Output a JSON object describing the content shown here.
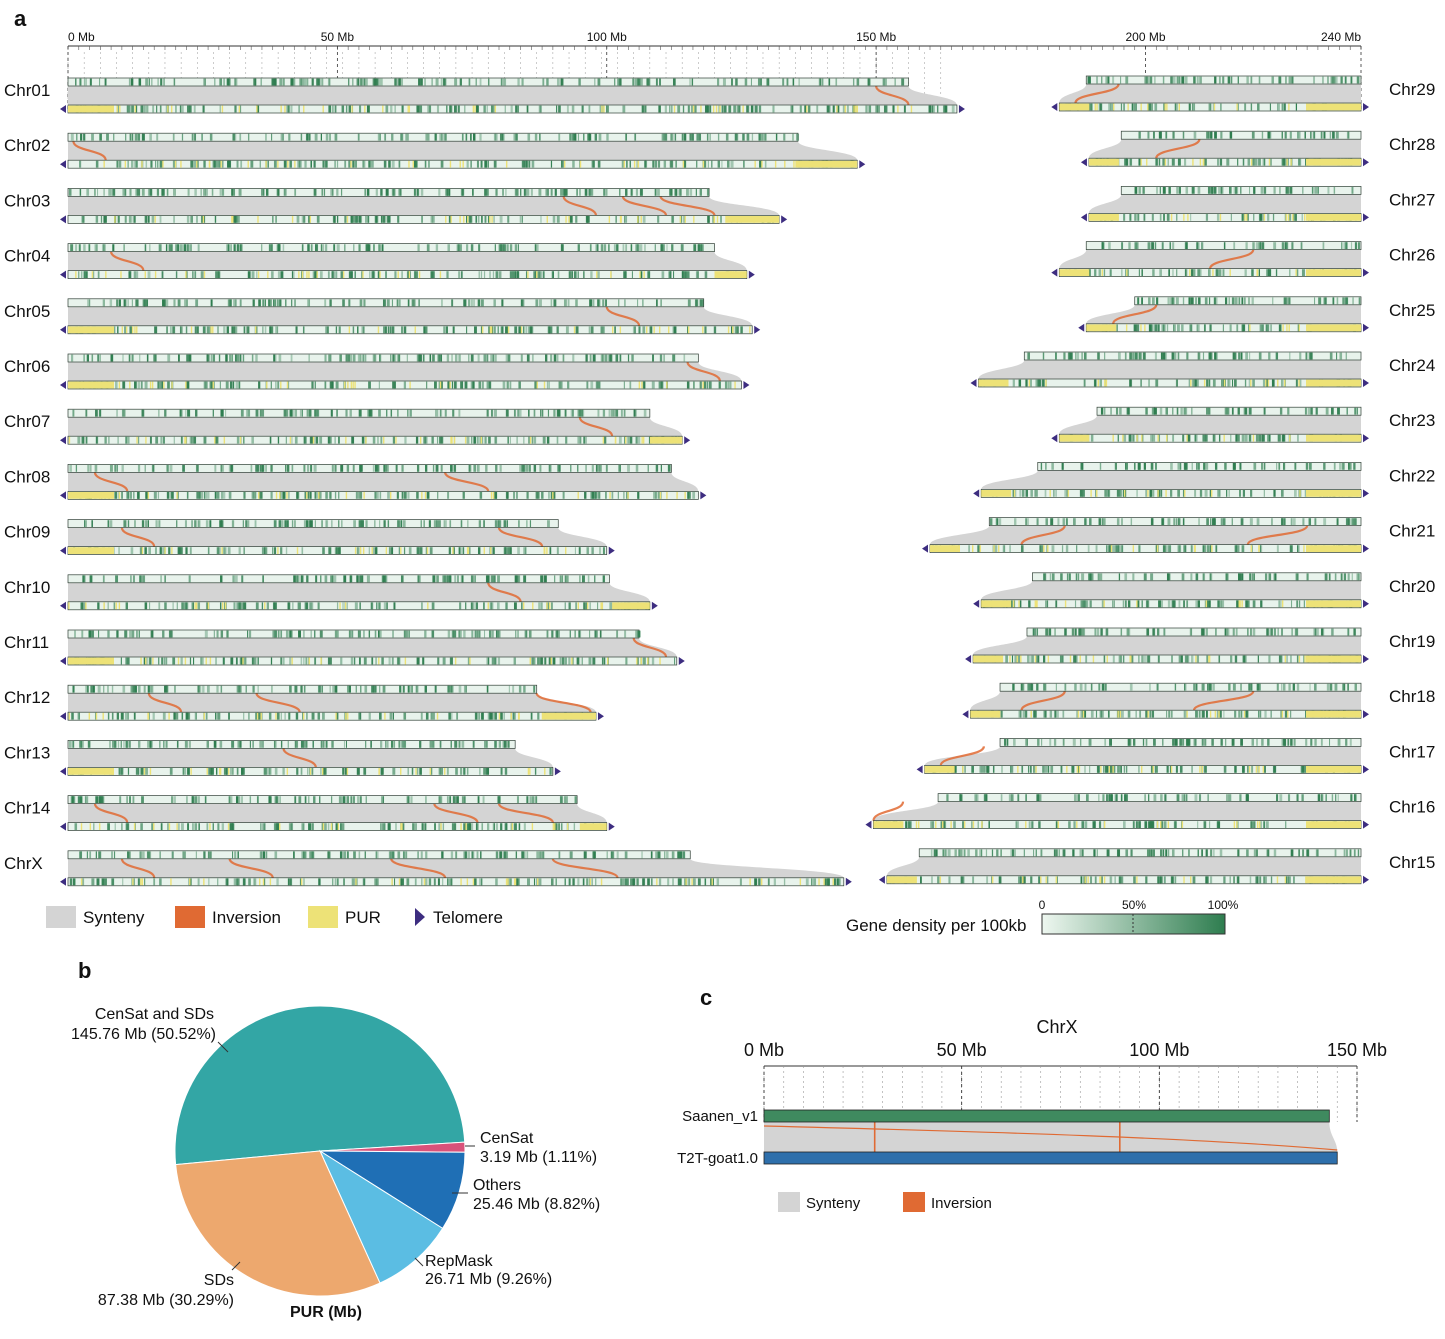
{
  "panel_labels": {
    "a": "a",
    "b": "b",
    "c": "c"
  },
  "colors": {
    "synteny": "#d4d4d4",
    "inversion": "#e06a33",
    "pur": "#ede277",
    "telomere": "#3d2d80",
    "gene_low": "#e6f2ea",
    "gene_high": "#2e7d4f",
    "saanen": "#3f8a5f",
    "t2t": "#2e6fab"
  },
  "chart_data": [
    {
      "panel": "a",
      "type": "genome synteny comparison",
      "axis": {
        "unit": "Mb",
        "range": [
          0,
          240
        ],
        "ticks": [
          {
            "value": 0,
            "label": "0 Mb"
          },
          {
            "value": 50,
            "label": "50 Mb"
          },
          {
            "value": 100,
            "label": "100 Mb"
          },
          {
            "value": 150,
            "label": "150 Mb"
          },
          {
            "value": 200,
            "label": "200 Mb"
          },
          {
            "value": 240,
            "label": "240 Mb"
          }
        ]
      },
      "left_chromosomes": [
        {
          "name": "Chr01",
          "top_mb": 156,
          "bottom_mb": 165,
          "pur_start_mb": [
            0
          ],
          "inversions_mb": [
            150
          ]
        },
        {
          "name": "Chr02",
          "top_mb": 135.5,
          "bottom_mb": 146.5,
          "pur_start_mb": [
            135
          ],
          "inversions_mb": [
            1
          ]
        },
        {
          "name": "Chr03",
          "top_mb": 119,
          "bottom_mb": 132,
          "pur_start_mb": [
            122
          ],
          "inversions_mb": [
            92,
            103,
            110
          ]
        },
        {
          "name": "Chr04",
          "top_mb": 120,
          "bottom_mb": 126,
          "pur_start_mb": [
            120
          ],
          "inversions_mb": [
            8
          ]
        },
        {
          "name": "Chr05",
          "top_mb": 118,
          "bottom_mb": 127,
          "pur_start_mb": [
            0
          ],
          "inversions_mb": [
            100
          ]
        },
        {
          "name": "Chr06",
          "top_mb": 117,
          "bottom_mb": 125,
          "pur_start_mb": [
            0
          ],
          "inversions_mb": [
            115
          ]
        },
        {
          "name": "Chr07",
          "top_mb": 108,
          "bottom_mb": 114,
          "pur_start_mb": [
            108
          ],
          "inversions_mb": [
            95
          ]
        },
        {
          "name": "Chr08",
          "top_mb": 112,
          "bottom_mb": 117,
          "pur_start_mb": [
            0
          ],
          "inversions_mb": [
            5,
            70
          ]
        },
        {
          "name": "Chr09",
          "top_mb": 91,
          "bottom_mb": 100,
          "pur_start_mb": [
            0
          ],
          "inversions_mb": [
            10,
            80
          ]
        },
        {
          "name": "Chr10",
          "top_mb": 100.5,
          "bottom_mb": 108,
          "pur_start_mb": [
            101
          ],
          "inversions_mb": [
            78
          ]
        },
        {
          "name": "Chr11",
          "top_mb": 106,
          "bottom_mb": 113,
          "pur_start_mb": [
            0
          ],
          "inversions_mb": [
            105
          ]
        },
        {
          "name": "Chr12",
          "top_mb": 87,
          "bottom_mb": 98,
          "pur_start_mb": [
            88
          ],
          "inversions_mb": [
            15,
            35,
            87
          ]
        },
        {
          "name": "Chr13",
          "top_mb": 83,
          "bottom_mb": 90,
          "pur_start_mb": [
            0
          ],
          "inversions_mb": [
            40
          ]
        },
        {
          "name": "Chr14",
          "top_mb": 94.5,
          "bottom_mb": 100,
          "pur_start_mb": [
            95
          ],
          "inversions_mb": [
            5,
            68,
            80
          ]
        },
        {
          "name": "ChrX",
          "top_mb": 115.5,
          "bottom_mb": 144,
          "pur_start_mb": [],
          "inversions_mb": [
            10,
            30,
            60,
            90
          ]
        }
      ],
      "right_chromosomes": [
        {
          "name": "Chr29",
          "top_mb": 51,
          "bottom_mb": 56,
          "pur_start_mb": [
            5
          ],
          "inversions_mb": [
            45
          ]
        },
        {
          "name": "Chr28",
          "top_mb": 44.5,
          "bottom_mb": 50.5,
          "pur_start_mb": [
            50
          ],
          "inversions_mb": [
            30
          ]
        },
        {
          "name": "Chr27",
          "top_mb": 44.5,
          "bottom_mb": 50.5,
          "pur_start_mb": [
            50
          ],
          "inversions_mb": []
        },
        {
          "name": "Chr26",
          "top_mb": 51,
          "bottom_mb": 56,
          "pur_start_mb": [
            55
          ],
          "inversions_mb": [
            20
          ]
        },
        {
          "name": "Chr25",
          "top_mb": 42,
          "bottom_mb": 51,
          "pur_start_mb": [
            50
          ],
          "inversions_mb": [
            38
          ]
        },
        {
          "name": "Chr24",
          "top_mb": 62.5,
          "bottom_mb": 71,
          "pur_start_mb": [
            70
          ],
          "inversions_mb": []
        },
        {
          "name": "Chr23",
          "top_mb": 49,
          "bottom_mb": 56,
          "pur_start_mb": [
            55
          ],
          "inversions_mb": []
        },
        {
          "name": "Chr22",
          "top_mb": 60,
          "bottom_mb": 70.5,
          "pur_start_mb": [
            69
          ],
          "inversions_mb": []
        },
        {
          "name": "Chr21",
          "top_mb": 69,
          "bottom_mb": 80,
          "pur_start_mb": [
            79
          ],
          "inversions_mb": [
            55,
            10
          ]
        },
        {
          "name": "Chr20",
          "top_mb": 61,
          "bottom_mb": 70.5,
          "pur_start_mb": [
            69
          ],
          "inversions_mb": []
        },
        {
          "name": "Chr19",
          "top_mb": 62,
          "bottom_mb": 72,
          "pur_start_mb": [
            70
          ],
          "inversions_mb": []
        },
        {
          "name": "Chr18",
          "top_mb": 67,
          "bottom_mb": 72.5,
          "pur_start_mb": [
            71
          ],
          "inversions_mb": [
            55,
            20
          ]
        },
        {
          "name": "Chr17",
          "top_mb": 67,
          "bottom_mb": 81,
          "pur_start_mb": [
            80
          ],
          "inversions_mb": [
            70
          ]
        },
        {
          "name": "Chr16",
          "top_mb": 78.5,
          "bottom_mb": 90.5,
          "pur_start_mb": [
            89
          ],
          "inversions_mb": [
            85
          ]
        },
        {
          "name": "Chr15",
          "top_mb": 82,
          "bottom_mb": 88,
          "pur_start_mb": [
            88
          ],
          "inversions_mb": []
        }
      ],
      "legend": [
        {
          "key": "synteny",
          "label": "Synteny"
        },
        {
          "key": "inversion",
          "label": "Inversion"
        },
        {
          "key": "pur",
          "label": "PUR"
        },
        {
          "key": "telomere",
          "label": "Telomere"
        }
      ],
      "gene_density_legend": {
        "title": "Gene density per 100kb",
        "ticks": [
          "0",
          "50%",
          "100%"
        ]
      }
    },
    {
      "panel": "b",
      "type": "pie",
      "title": "PUR (Mb)",
      "slices": [
        {
          "name": "CenSat and SDs",
          "value": 145.76,
          "value_label": "145.76 Mb (50.52%)",
          "color": "#33a6a5"
        },
        {
          "name": "CenSat",
          "value": 3.19,
          "value_label": "3.19 Mb (1.11%)",
          "color": "#d9527a"
        },
        {
          "name": "Others",
          "value": 25.46,
          "value_label": "25.46 Mb (8.82%)",
          "color": "#1f6fb5"
        },
        {
          "name": "RepMask",
          "value": 26.71,
          "value_label": "26.71 Mb (9.26%)",
          "color": "#5bbde3"
        },
        {
          "name": "SDs",
          "value": 87.38,
          "value_label": "87.38 Mb (30.29%)",
          "color": "#eda86e"
        }
      ]
    },
    {
      "panel": "c",
      "type": "genome synteny comparison",
      "title": "ChrX",
      "axis": {
        "unit": "Mb",
        "range": [
          0,
          150
        ],
        "ticks": [
          {
            "value": 0,
            "label": "0 Mb"
          },
          {
            "value": 50,
            "label": "50 Mb"
          },
          {
            "value": 100,
            "label": "100 Mb"
          },
          {
            "value": 150,
            "label": "150 Mb"
          }
        ]
      },
      "tracks": [
        {
          "name": "Saanen_v1",
          "length_mb": 143,
          "color_key": "saanen"
        },
        {
          "name": "T2T-goat1.0",
          "length_mb": 145,
          "color_key": "t2t"
        }
      ],
      "inversions_mb": [
        28,
        90
      ],
      "legend": [
        {
          "key": "synteny",
          "label": "Synteny"
        },
        {
          "key": "inversion",
          "label": "Inversion"
        }
      ]
    }
  ]
}
